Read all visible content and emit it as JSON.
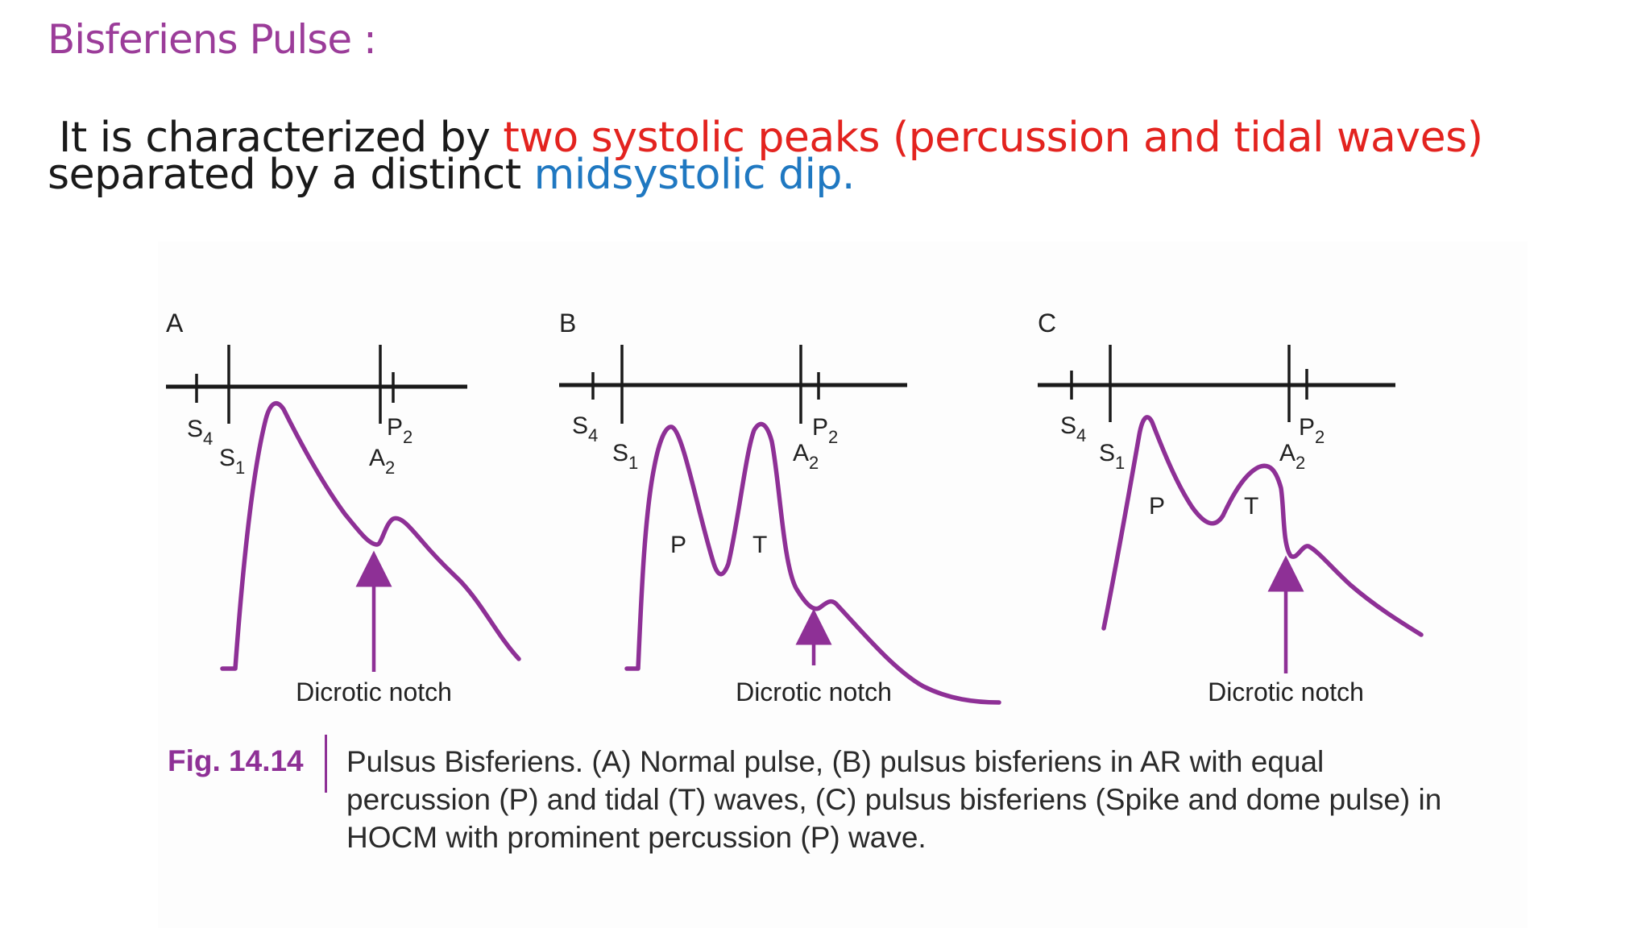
{
  "slide": {
    "title": "Bisferiens Pulse :",
    "body_line1_pre": "It is characterized by ",
    "body_line1_highlight": "two systolic peaks (percussion and tidal waves)",
    "body_line2_pre": "separated by a distinct ",
    "body_line2_highlight": "midsystolic dip.",
    "colors": {
      "title": "#9b3c99",
      "highlight_red": "#e3231f",
      "highlight_blue": "#1f78c1",
      "curve": "#8e3096"
    }
  },
  "figure": {
    "panels": [
      {
        "letter": "A",
        "s4": "S4",
        "s1": "S1",
        "p2": "P2",
        "a2": "A2",
        "notch_label": "Dicrotic notch"
      },
      {
        "letter": "B",
        "s4": "S4",
        "s1": "S1",
        "p2": "P2",
        "a2": "A2",
        "p_label": "P",
        "t_label": "T",
        "notch_label": "Dicrotic notch"
      },
      {
        "letter": "C",
        "s4": "S4",
        "s1": "S1",
        "p2": "P2",
        "a2": "A2",
        "p_label": "P",
        "t_label": "T",
        "notch_label": "Dicrotic notch"
      }
    ],
    "caption_label": "Fig. 14.14",
    "caption_text": "Pulsus Bisferiens. (A) Normal pulse, (B) pulsus bisferiens in AR with equal percussion (P) and tidal (T) waves, (C) pulsus bisferiens (Spike and dome pulse) in HOCM with prominent percussion (P) wave."
  }
}
